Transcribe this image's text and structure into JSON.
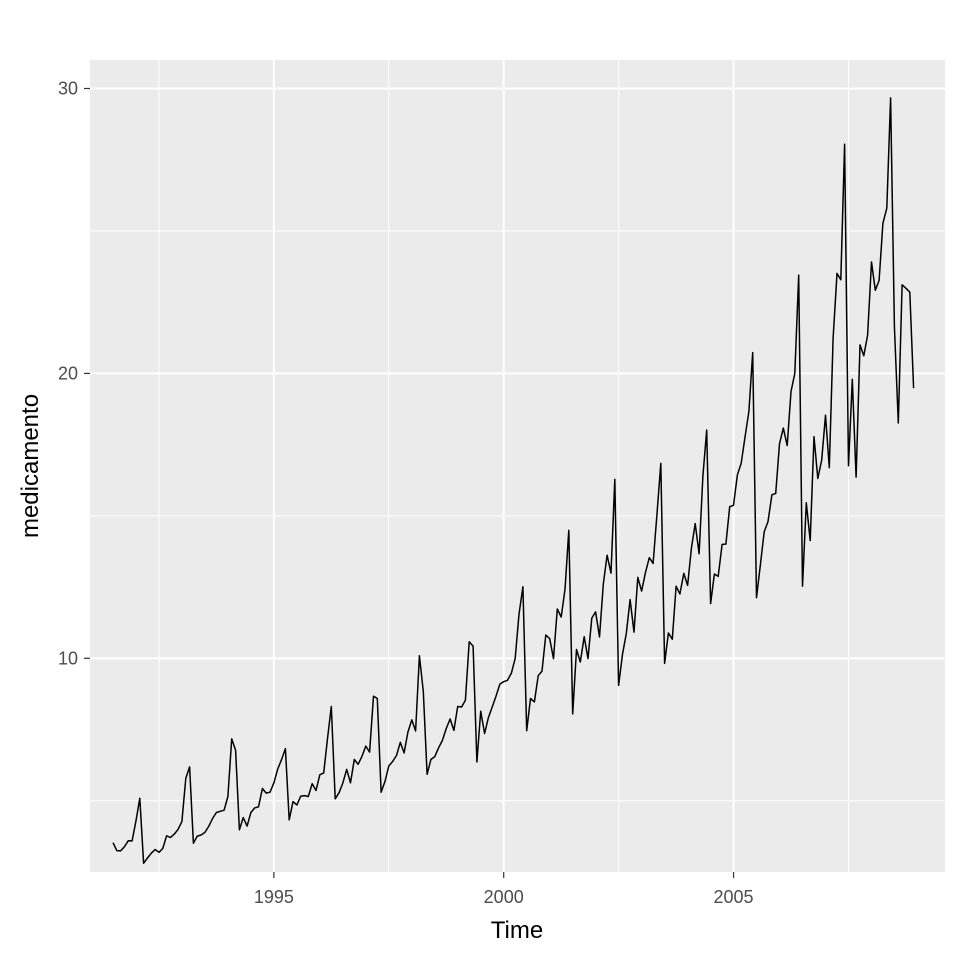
{
  "chart_data": {
    "type": "line",
    "title": "",
    "xlabel": "Time",
    "ylabel": "medicamento",
    "xlim": [
      1991.0,
      2009.6
    ],
    "ylim": [
      2.5,
      31.0
    ],
    "x_major_ticks": [
      1995,
      2000,
      2005
    ],
    "x_minor_ticks": [
      1992.5,
      1997.5,
      2002.5,
      2007.5
    ],
    "y_major_ticks": [
      10,
      20,
      30
    ],
    "y_minor_ticks": [
      5,
      15,
      25
    ],
    "x_tick_labels": [
      "1995",
      "2000",
      "2005"
    ],
    "y_tick_labels": [
      "10",
      "20",
      "30"
    ],
    "grid": true,
    "theme": {
      "panel_bg": "#ebebeb",
      "grid_color": "#ffffff",
      "line_color": "#000000",
      "tick_label_color": "#4d4d4d"
    },
    "series": [
      {
        "start": 1991.5,
        "frequency": 12,
        "values": [
          3.53,
          3.25,
          3.24,
          3.39,
          3.6,
          3.59,
          4.3,
          5.09,
          2.81,
          2.99,
          3.16,
          3.29,
          3.19,
          3.33,
          3.77,
          3.71,
          3.83,
          4.0,
          4.27,
          5.79,
          6.19,
          3.51,
          3.76,
          3.8,
          3.89,
          4.1,
          4.38,
          4.59,
          4.63,
          4.67,
          5.15,
          7.17,
          6.77,
          3.98,
          4.41,
          4.11,
          4.59,
          4.75,
          4.79,
          5.43,
          5.27,
          5.3,
          5.63,
          6.11,
          6.44,
          6.83,
          4.33,
          4.97,
          4.85,
          5.16,
          5.18,
          5.15,
          5.6,
          5.36,
          5.91,
          5.98,
          7.18,
          8.31,
          5.07,
          5.28,
          5.62,
          6.1,
          5.63,
          6.45,
          6.28,
          6.56,
          6.92,
          6.71,
          8.67,
          8.59,
          5.3,
          5.68,
          6.22,
          6.38,
          6.59,
          7.05,
          6.68,
          7.41,
          7.84,
          7.45,
          10.09,
          8.84,
          5.93,
          6.45,
          6.55,
          6.86,
          7.12,
          7.54,
          7.87,
          7.47,
          8.31,
          8.29,
          8.53,
          10.58,
          10.43,
          6.36,
          8.14,
          7.36,
          7.92,
          8.29,
          8.67,
          9.1,
          9.18,
          9.23,
          9.48,
          10.0,
          11.55,
          12.51,
          7.46,
          8.59,
          8.47,
          9.39,
          9.55,
          10.82,
          10.69,
          9.99,
          11.73,
          11.45,
          12.42,
          14.49,
          8.05,
          10.31,
          9.87,
          10.76,
          9.99,
          11.41,
          11.63,
          10.75,
          12.6,
          13.62,
          12.99,
          16.28,
          9.05,
          10.14,
          10.87,
          12.06,
          10.92,
          12.84,
          12.36,
          13.0,
          13.53,
          13.33,
          15.03,
          16.84,
          9.82,
          10.89,
          10.67,
          12.53,
          12.26,
          12.98,
          12.56,
          13.86,
          14.73,
          13.67,
          16.4,
          18.01,
          11.92,
          12.96,
          12.88,
          14.0,
          14.01,
          15.32,
          15.37,
          16.44,
          16.85,
          17.76,
          18.67,
          20.73,
          12.13,
          13.29,
          14.44,
          14.8,
          15.74,
          15.79,
          17.53,
          18.08,
          17.47,
          19.36,
          20.0,
          23.45,
          12.53,
          15.46,
          14.13,
          17.78,
          16.31,
          16.96,
          18.53,
          16.69,
          21.23,
          23.51,
          23.29,
          28.04,
          16.76,
          19.79,
          16.36,
          21.0,
          20.62,
          21.34,
          23.91,
          22.92,
          23.26,
          25.27,
          25.8,
          29.67,
          21.65,
          18.26,
          23.11,
          22.99,
          22.85,
          19.48
        ]
      }
    ]
  }
}
